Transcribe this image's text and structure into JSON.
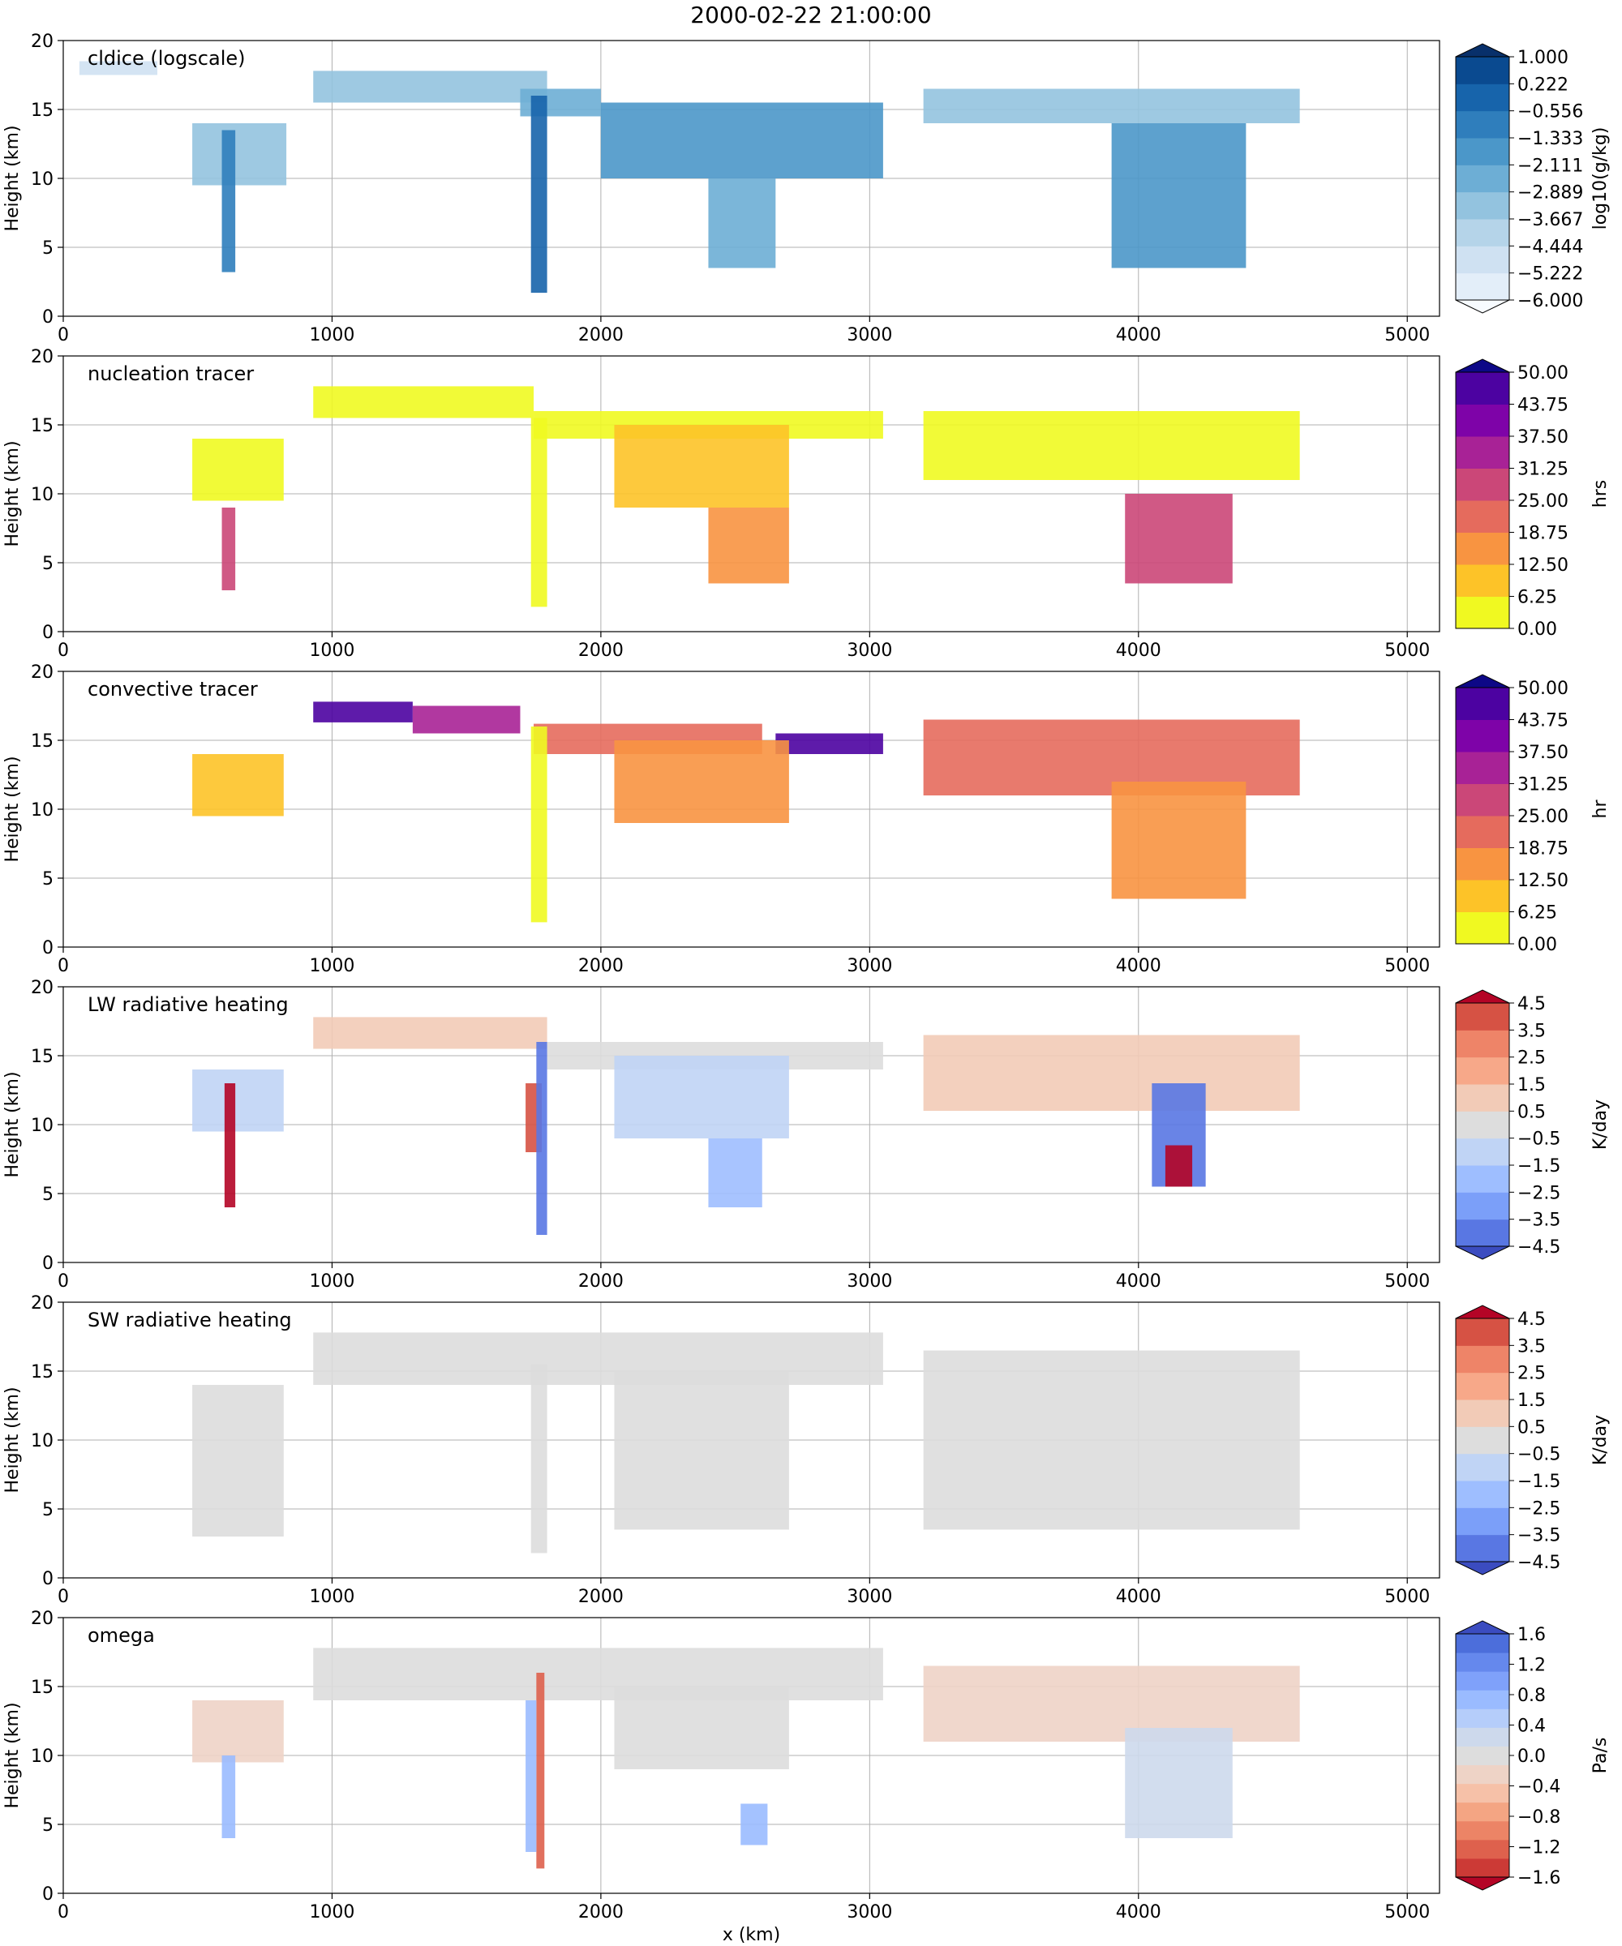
{
  "figure": {
    "title": "2000-02-22 21:00:00",
    "xlabel": "x (km)",
    "ylabel": "Height (km)"
  },
  "chart_data": [
    {
      "type": "heatmap",
      "title": "cldice (logscale)",
      "xlabel": "",
      "ylabel": "Height (km)",
      "xlim": [
        0,
        5120
      ],
      "ylim": [
        0,
        20
      ],
      "xticks": [
        0,
        1000,
        2000,
        3000,
        4000,
        5000
      ],
      "yticks": [
        0,
        5,
        10,
        15,
        20
      ],
      "grid": true,
      "colorbar": {
        "label": "log10(g/kg)",
        "cmap": [
          "#f7fbff",
          "#e3eef9",
          "#cfe1f2",
          "#b5d4e9",
          "#93c3df",
          "#6daed5",
          "#4b97c9",
          "#2f7ebc",
          "#1764ab",
          "#0a4a90",
          "#08306b"
        ],
        "ticks": [
          "1.000",
          "0.222",
          "−0.556",
          "−1.333",
          "−2.111",
          "−2.889",
          "−3.667",
          "−4.444",
          "−5.222",
          "−6.000"
        ],
        "extend": "both"
      },
      "levels": [
        -6.0,
        -5.222,
        -4.444,
        -3.667,
        -2.889,
        -2.111,
        -1.333,
        -0.556,
        0.222,
        1.0
      ],
      "features": [
        {
          "x": [
            60,
            350
          ],
          "y": [
            17.5,
            18.5
          ],
          "value": -4.5
        },
        {
          "x": [
            930,
            1800
          ],
          "y": [
            15.5,
            17.8
          ],
          "value": -3.0
        },
        {
          "x": [
            1700,
            2000
          ],
          "y": [
            14.5,
            16.5
          ],
          "value": -2.5
        },
        {
          "x": [
            480,
            830
          ],
          "y": [
            9.5,
            14.0
          ],
          "value": -3.0
        },
        {
          "x": [
            590,
            640
          ],
          "y": [
            3.2,
            13.5
          ],
          "value": -1.0
        },
        {
          "x": [
            1740,
            1800
          ],
          "y": [
            1.7,
            16.0
          ],
          "value": -0.3
        },
        {
          "x": [
            2000,
            3050
          ],
          "y": [
            10.0,
            15.5
          ],
          "value": -2.0
        },
        {
          "x": [
            2400,
            2650
          ],
          "y": [
            3.5,
            10.0
          ],
          "value": -2.5
        },
        {
          "x": [
            3200,
            4600
          ],
          "y": [
            14.0,
            16.5
          ],
          "value": -3.5
        },
        {
          "x": [
            3900,
            4400
          ],
          "y": [
            3.5,
            14.0
          ],
          "value": -1.5
        }
      ]
    },
    {
      "type": "heatmap",
      "title": "nucleation tracer",
      "xlabel": "",
      "ylabel": "Height (km)",
      "xlim": [
        0,
        5120
      ],
      "ylim": [
        0,
        20
      ],
      "xticks": [
        0,
        1000,
        2000,
        3000,
        4000,
        5000
      ],
      "yticks": [
        0,
        5,
        10,
        15,
        20
      ],
      "grid": true,
      "colorbar": {
        "label": "hrs",
        "cmap": [
          "#f0f921",
          "#fdc328",
          "#f89441",
          "#e56b5d",
          "#cb4778",
          "#a82296",
          "#7e03a8",
          "#4c02a1",
          "#0d0887"
        ],
        "ticks": [
          "50.00",
          "43.75",
          "37.50",
          "31.25",
          "25.00",
          "18.75",
          "12.50",
          "6.25",
          "0.00"
        ],
        "extend": "max"
      },
      "levels": [
        0.0,
        6.25,
        12.5,
        18.75,
        25.0,
        31.25,
        37.5,
        43.75,
        50.0
      ],
      "features": [
        {
          "x": [
            930,
            1750
          ],
          "y": [
            15.5,
            17.8
          ],
          "value": 3
        },
        {
          "x": [
            1750,
            3050
          ],
          "y": [
            14.0,
            16.0
          ],
          "value": 4
        },
        {
          "x": [
            480,
            820
          ],
          "y": [
            9.5,
            14.0
          ],
          "value": 6
        },
        {
          "x": [
            590,
            640
          ],
          "y": [
            3.0,
            9.0
          ],
          "value": 30
        },
        {
          "x": [
            1740,
            1800
          ],
          "y": [
            1.8,
            15.5
          ],
          "value": 6
        },
        {
          "x": [
            2050,
            2700
          ],
          "y": [
            9.0,
            15.0
          ],
          "value": 10
        },
        {
          "x": [
            2400,
            2700
          ],
          "y": [
            3.5,
            9.0
          ],
          "value": 18
        },
        {
          "x": [
            3200,
            4600
          ],
          "y": [
            11.0,
            16.0
          ],
          "value": 5
        },
        {
          "x": [
            3950,
            4350
          ],
          "y": [
            3.5,
            10.0
          ],
          "value": 25
        }
      ]
    },
    {
      "type": "heatmap",
      "title": "convective tracer",
      "xlabel": "",
      "ylabel": "Height (km)",
      "xlim": [
        0,
        5120
      ],
      "ylim": [
        0,
        20
      ],
      "xticks": [
        0,
        1000,
        2000,
        3000,
        4000,
        5000
      ],
      "yticks": [
        0,
        5,
        10,
        15,
        20
      ],
      "grid": true,
      "colorbar": {
        "label": "hr",
        "cmap": [
          "#f0f921",
          "#fdc328",
          "#f89441",
          "#e56b5d",
          "#cb4778",
          "#a82296",
          "#7e03a8",
          "#4c02a1",
          "#0d0887"
        ],
        "ticks": [
          "50.00",
          "43.75",
          "37.50",
          "31.25",
          "25.00",
          "18.75",
          "12.50",
          "6.25",
          "0.00"
        ],
        "extend": "max"
      },
      "levels": [
        0.0,
        6.25,
        12.5,
        18.75,
        25.0,
        31.25,
        37.5,
        43.75,
        50.0
      ],
      "features": [
        {
          "x": [
            930,
            1300
          ],
          "y": [
            16.3,
            17.8
          ],
          "value": 48
        },
        {
          "x": [
            1300,
            1700
          ],
          "y": [
            15.5,
            17.5
          ],
          "value": 35
        },
        {
          "x": [
            1750,
            2600
          ],
          "y": [
            14.0,
            16.2
          ],
          "value": 22
        },
        {
          "x": [
            2650,
            3050
          ],
          "y": [
            14.0,
            15.5
          ],
          "value": 45
        },
        {
          "x": [
            480,
            820
          ],
          "y": [
            9.5,
            14.0
          ],
          "value": 10
        },
        {
          "x": [
            1740,
            1800
          ],
          "y": [
            1.8,
            16.0
          ],
          "value": 3
        },
        {
          "x": [
            2050,
            2700
          ],
          "y": [
            9.0,
            15.0
          ],
          "value": 15
        },
        {
          "x": [
            3200,
            4600
          ],
          "y": [
            11.0,
            16.5
          ],
          "value": 20
        },
        {
          "x": [
            3900,
            4400
          ],
          "y": [
            3.5,
            12.0
          ],
          "value": 14
        }
      ]
    },
    {
      "type": "heatmap",
      "title": "LW radiative heating",
      "xlabel": "",
      "ylabel": "Height (km)",
      "xlim": [
        0,
        5120
      ],
      "ylim": [
        0,
        20
      ],
      "xticks": [
        0,
        1000,
        2000,
        3000,
        4000,
        5000
      ],
      "yticks": [
        0,
        5,
        10,
        15,
        20
      ],
      "grid": true,
      "colorbar": {
        "label": "K/day",
        "cmap": [
          "#3b4cc0",
          "#5977e3",
          "#7b9ff9",
          "#9ebeff",
          "#c0d4f5",
          "#dddddd",
          "#f2cbb7",
          "#f7a889",
          "#ee8468",
          "#d65244",
          "#b40426"
        ],
        "ticks": [
          "4.5",
          "3.5",
          "2.5",
          "1.5",
          "0.5",
          "−0.5",
          "−1.5",
          "−2.5",
          "−3.5",
          "−4.5"
        ],
        "extend": "both"
      },
      "levels": [
        -4.5,
        -3.5,
        -2.5,
        -1.5,
        -0.5,
        0.5,
        1.5,
        2.5,
        3.5,
        4.5
      ],
      "features": [
        {
          "x": [
            930,
            1800
          ],
          "y": [
            15.5,
            17.8
          ],
          "value": 1.0
        },
        {
          "x": [
            1800,
            3050
          ],
          "y": [
            14.0,
            16.0
          ],
          "value": 0.0
        },
        {
          "x": [
            480,
            820
          ],
          "y": [
            9.5,
            14.0
          ],
          "value": -1.5
        },
        {
          "x": [
            600,
            640
          ],
          "y": [
            4.0,
            13.0
          ],
          "value": 5.0
        },
        {
          "x": [
            1720,
            1780
          ],
          "y": [
            8.0,
            13.0
          ],
          "value": 4.0
        },
        {
          "x": [
            1760,
            1800
          ],
          "y": [
            2.0,
            16.0
          ],
          "value": -4.0
        },
        {
          "x": [
            2050,
            2700
          ],
          "y": [
            9.0,
            15.0
          ],
          "value": -1.0
        },
        {
          "x": [
            2400,
            2600
          ],
          "y": [
            4.0,
            9.0
          ],
          "value": -2.5
        },
        {
          "x": [
            3200,
            4600
          ],
          "y": [
            11.0,
            16.5
          ],
          "value": 0.8
        },
        {
          "x": [
            4050,
            4250
          ],
          "y": [
            5.5,
            13.0
          ],
          "value": -4.5
        },
        {
          "x": [
            4100,
            4200
          ],
          "y": [
            5.5,
            8.5
          ],
          "value": 4.5
        }
      ]
    },
    {
      "type": "heatmap",
      "title": "SW radiative heating",
      "xlabel": "",
      "ylabel": "Height (km)",
      "xlim": [
        0,
        5120
      ],
      "ylim": [
        0,
        20
      ],
      "xticks": [
        0,
        1000,
        2000,
        3000,
        4000,
        5000
      ],
      "yticks": [
        0,
        5,
        10,
        15,
        20
      ],
      "grid": true,
      "colorbar": {
        "label": "K/day",
        "cmap": [
          "#3b4cc0",
          "#5977e3",
          "#7b9ff9",
          "#9ebeff",
          "#c0d4f5",
          "#dddddd",
          "#f2cbb7",
          "#f7a889",
          "#ee8468",
          "#d65244",
          "#b40426"
        ],
        "ticks": [
          "4.5",
          "3.5",
          "2.5",
          "1.5",
          "0.5",
          "−0.5",
          "−1.5",
          "−2.5",
          "−3.5",
          "−4.5"
        ],
        "extend": "both"
      },
      "levels": [
        -4.5,
        -3.5,
        -2.5,
        -1.5,
        -0.5,
        0.5,
        1.5,
        2.5,
        3.5,
        4.5
      ],
      "features": [
        {
          "x": [
            930,
            3050
          ],
          "y": [
            14.0,
            17.8
          ],
          "value": 0.0
        },
        {
          "x": [
            480,
            820
          ],
          "y": [
            3.0,
            14.0
          ],
          "value": 0.0
        },
        {
          "x": [
            1740,
            1800
          ],
          "y": [
            1.8,
            15.5
          ],
          "value": 0.0
        },
        {
          "x": [
            2050,
            2700
          ],
          "y": [
            3.5,
            15.0
          ],
          "value": 0.0
        },
        {
          "x": [
            3200,
            4600
          ],
          "y": [
            3.5,
            16.5
          ],
          "value": 0.0
        }
      ]
    },
    {
      "type": "heatmap",
      "title": "omega",
      "xlabel": "x (km)",
      "ylabel": "Height (km)",
      "xlim": [
        0,
        5120
      ],
      "ylim": [
        0,
        20
      ],
      "xticks": [
        0,
        1000,
        2000,
        3000,
        4000,
        5000
      ],
      "yticks": [
        0,
        5,
        10,
        15,
        20
      ],
      "grid": true,
      "colorbar": {
        "label": "Pa/s",
        "cmap": [
          "#b40426",
          "#cc3a36",
          "#de614d",
          "#ec8466",
          "#f4a583",
          "#f6c1a8",
          "#eed3c6",
          "#dddddd",
          "#cdd9ec",
          "#b5cdfa",
          "#9abbff",
          "#7fa1fa",
          "#6588ed",
          "#4c6edb",
          "#3b4cc0"
        ],
        "ticks": [
          "1.6",
          "1.2",
          "0.8",
          "0.4",
          "0.0",
          "−0.4",
          "−0.8",
          "−1.2",
          "−1.6"
        ],
        "extend": "both"
      },
      "levels": [
        -1.6,
        -1.2,
        -0.8,
        -0.4,
        0.0,
        0.4,
        0.8,
        1.2,
        1.6
      ],
      "features": [
        {
          "x": [
            930,
            3050
          ],
          "y": [
            14.0,
            17.8
          ],
          "value": 0.1
        },
        {
          "x": [
            480,
            820
          ],
          "y": [
            9.5,
            14.0
          ],
          "value": -0.3
        },
        {
          "x": [
            590,
            640
          ],
          "y": [
            4.0,
            10.0
          ],
          "value": 1.2
        },
        {
          "x": [
            1760,
            1790
          ],
          "y": [
            1.8,
            16.0
          ],
          "value": -1.8
        },
        {
          "x": [
            1720,
            1760
          ],
          "y": [
            3.0,
            14.0
          ],
          "value": 1.4
        },
        {
          "x": [
            2050,
            2700
          ],
          "y": [
            9.0,
            15.0
          ],
          "value": 0.3
        },
        {
          "x": [
            2520,
            2620
          ],
          "y": [
            3.5,
            6.5
          ],
          "value": 1.5
        },
        {
          "x": [
            3200,
            4600
          ],
          "y": [
            11.0,
            16.5
          ],
          "value": -0.2
        },
        {
          "x": [
            3950,
            4350
          ],
          "y": [
            4.0,
            12.0
          ],
          "value": 0.6
        }
      ]
    }
  ]
}
